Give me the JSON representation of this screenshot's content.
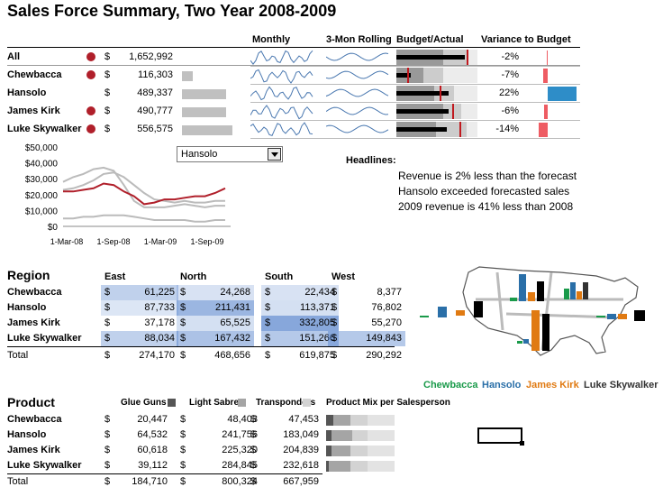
{
  "title": "Sales Force Summary, Two Year 2008-2009",
  "summary": {
    "headers": {
      "monthly": "Monthly",
      "rolling": "3-Mon Rolling",
      "budget_actual": "Budget/Actual",
      "variance": "Variance to Budget"
    },
    "currency": "$",
    "rows": [
      {
        "name": "All",
        "value": "1,652,992",
        "dot": true,
        "variance": "-2%",
        "variance_num": -2,
        "bar": 0
      },
      {
        "name": "Chewbacca",
        "value": "116,303",
        "dot": true,
        "variance": "-7%",
        "variance_num": -7,
        "bar": 116303
      },
      {
        "name": "Hansolo",
        "value": "489,337",
        "dot": false,
        "variance": "22%",
        "variance_num": 22,
        "bar": 489337
      },
      {
        "name": "James Kirk",
        "value": "490,777",
        "dot": true,
        "variance": "-6%",
        "variance_num": -6,
        "bar": 490777
      },
      {
        "name": "Luke Skywalker",
        "value": "556,575",
        "dot": true,
        "variance": "-14%",
        "variance_num": -14,
        "bar": 556575
      }
    ]
  },
  "combo": {
    "selected": "Hansolo"
  },
  "line_chart": {
    "chart_data": {
      "type": "line",
      "x_ticks": [
        "1-Mar-08",
        "1-Sep-08",
        "1-Mar-09",
        "1-Sep-09"
      ],
      "y_ticks": [
        "$50,000",
        "$40,000",
        "$30,000",
        "$20,000",
        "$10,000",
        "$0"
      ],
      "ylim": [
        0,
        50000
      ],
      "series": [
        {
          "values": [
            22000,
            22000,
            23000,
            24000,
            27000,
            26000,
            22000,
            19000,
            14000,
            15000,
            17000,
            17000,
            18000,
            19000,
            19000,
            21000,
            24000
          ],
          "color": "#b01f2a"
        },
        {
          "values": [
            28000,
            31000,
            33000,
            36000,
            37000,
            35000,
            26000,
            16000,
            12000,
            12000,
            12000,
            13000,
            14000,
            13000,
            12000,
            13000,
            13000
          ],
          "color": "#bbbbbb"
        },
        {
          "values": [
            23000,
            24000,
            26000,
            29000,
            33000,
            34000,
            31000,
            26000,
            21000,
            17000,
            16000,
            15000,
            16000,
            15000,
            15000,
            16000,
            16000
          ],
          "color": "#bbbbbb"
        },
        {
          "values": [
            5000,
            5000,
            6000,
            6000,
            7000,
            7000,
            7000,
            6000,
            5000,
            4000,
            4000,
            4000,
            4000,
            3000,
            3000,
            4000,
            4000
          ],
          "color": "#bbbbbb"
        }
      ]
    }
  },
  "headlines": {
    "label": "Headlines:",
    "lines": [
      "Revenue is 2% less than the forecast",
      "Hansolo exceeded forecasted sales",
      "2009 revenue is 41% less than 2008"
    ]
  },
  "region": {
    "title": "Region",
    "columns": [
      "East",
      "North",
      "South",
      "West"
    ],
    "currency": "$",
    "rows": [
      {
        "name": "Chewbacca",
        "values": [
          "61,225",
          "24,268",
          "22,434",
          "8,377"
        ],
        "shade": [
          0.35,
          0.1,
          0.1,
          0.0
        ]
      },
      {
        "name": "Hansolo",
        "values": [
          "87,733",
          "211,431",
          "113,371",
          "76,802"
        ],
        "shade": [
          0.08,
          0.7,
          0.15,
          0.0
        ]
      },
      {
        "name": "James Kirk",
        "values": [
          "37,178",
          "65,525",
          "332,805",
          "55,270"
        ],
        "shade": [
          0.0,
          0.15,
          0.9,
          0.0
        ]
      },
      {
        "name": "Luke Skywalker",
        "values": [
          "88,034",
          "167,432",
          "151,266",
          "149,843"
        ],
        "shade": [
          0.35,
          0.55,
          0.45,
          0.45
        ]
      }
    ],
    "total": {
      "name": "Total",
      "values": [
        "274,170",
        "468,656",
        "619,875",
        "290,292"
      ]
    }
  },
  "map_legend": [
    {
      "name": "Chewbacca",
      "color": "#1a9a4a"
    },
    {
      "name": "Hansolo",
      "color": "#2a6fa8"
    },
    {
      "name": "James Kirk",
      "color": "#e07a12"
    },
    {
      "name": "Luke Skywalker",
      "color": "#333333"
    }
  ],
  "product": {
    "title": "Product",
    "columns": [
      {
        "label": "Glue Guns",
        "color": "#555555"
      },
      {
        "label": "Light Sabres",
        "color": "#a5a5a5"
      },
      {
        "label": "Transponders",
        "color": "#d3d3d3"
      },
      {
        "label": "Product Mix per Salesperson",
        "color": "#e0e0e0"
      }
    ],
    "currency": "$",
    "rows": [
      {
        "name": "Chewbacca",
        "values": [
          "20,447",
          "48,403",
          "47,453"
        ],
        "mix": [
          20447,
          48403,
          47453
        ]
      },
      {
        "name": "Hansolo",
        "values": [
          "64,532",
          "241,756",
          "183,049"
        ],
        "mix": [
          64532,
          241756,
          183049
        ]
      },
      {
        "name": "James Kirk",
        "values": [
          "60,618",
          "225,320",
          "204,839"
        ],
        "mix": [
          60618,
          225320,
          204839
        ]
      },
      {
        "name": "Luke Skywalker",
        "values": [
          "39,112",
          "284,845",
          "232,618"
        ],
        "mix": [
          39112,
          284845,
          232618
        ]
      }
    ],
    "total": {
      "name": "Total",
      "values": [
        "184,710",
        "800,324",
        "667,959"
      ]
    }
  }
}
